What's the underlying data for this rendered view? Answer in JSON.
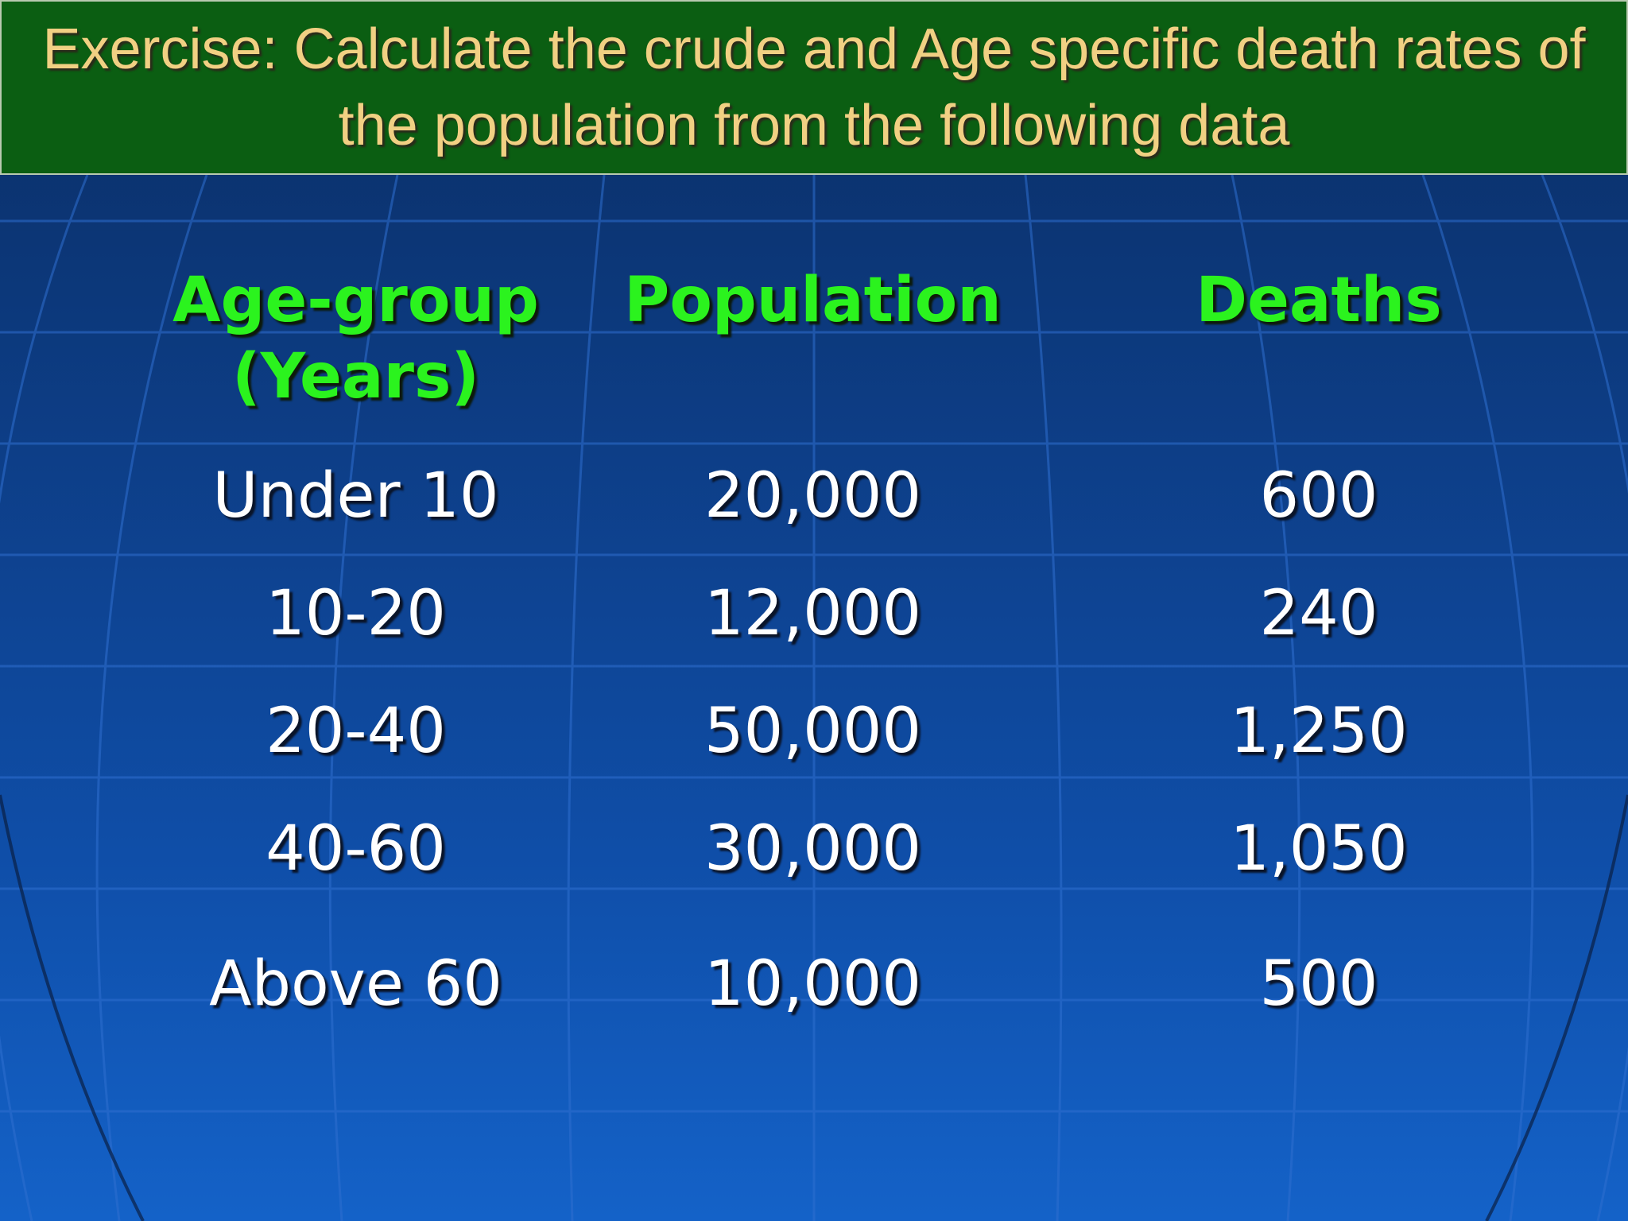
{
  "title": "Exercise: Calculate the crude and Age specific death rates of the population from the following data",
  "table": {
    "headers": {
      "age_group": "Age-group (Years)",
      "population": "Population",
      "deaths": "Deaths"
    },
    "rows": [
      {
        "age_group": "Under 10",
        "population": "20,000",
        "deaths": "600"
      },
      {
        "age_group": "10-20",
        "population": "12,000",
        "deaths": "240"
      },
      {
        "age_group": "20-40",
        "population": "50,000",
        "deaths": "1,250"
      },
      {
        "age_group": "40-60",
        "population": "30,000",
        "deaths": "1,050"
      },
      {
        "age_group": "Above 60",
        "population": "10,000",
        "deaths": "500"
      }
    ]
  },
  "colors": {
    "title_bar": "#0b5e12",
    "title_text": "#f1d083",
    "header_text": "#2bf31e",
    "cell_text": "#ffffff",
    "background_top": "#0a2d63",
    "background_bottom": "#1462c8"
  }
}
